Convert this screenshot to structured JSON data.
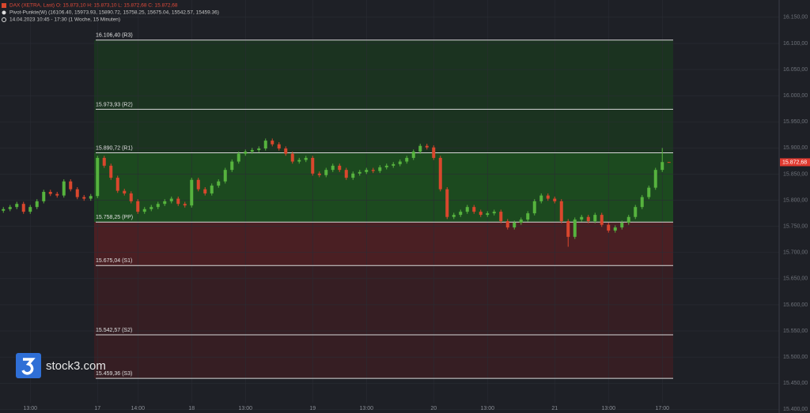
{
  "chart_data": {
    "type": "candlestick",
    "title": "DAX (XETRA, Last)   O: 15.873,10   H: 15.873,10   L: 15.872,68   C: 15.872,68",
    "subtitle": "Pivot-Punkte(W)   (16106.40,   15973.93,   15890.72,   15758.25,   15675.04,   15542.57,   15459.36)",
    "period": "14.04.2023 10:45 - 17:30   (1 Woche, 15 Minuten)",
    "watermark": "stock3.com",
    "up_color": "#56b33e",
    "down_color": "#d9472d",
    "categories": [
      null,
      null,
      null,
      null,
      "13:00",
      null,
      null,
      null,
      null,
      null,
      null,
      null,
      null,
      null,
      "17",
      null,
      null,
      null,
      null,
      null,
      "14:00",
      null,
      null,
      null,
      null,
      null,
      null,
      null,
      "18",
      null,
      null,
      null,
      null,
      null,
      null,
      null,
      "13:00",
      null,
      null,
      null,
      null,
      null,
      null,
      null,
      null,
      null,
      "19",
      null,
      null,
      null,
      null,
      null,
      null,
      null,
      "13:00",
      null,
      null,
      null,
      null,
      null,
      null,
      null,
      null,
      null,
      "20",
      null,
      null,
      null,
      null,
      null,
      null,
      null,
      "13:00",
      null,
      null,
      null,
      null,
      null,
      null,
      null,
      null,
      null,
      "21",
      null,
      null,
      null,
      null,
      null,
      null,
      null,
      "13:00",
      null,
      null,
      null,
      null,
      null,
      null,
      null,
      "17:00",
      null
    ],
    "open": [
      15780,
      15783,
      15787,
      15793,
      15778,
      15787,
      15798,
      15816,
      15812,
      15809,
      15836,
      15821,
      15806,
      15803,
      15808,
      15881,
      15866,
      15843,
      15818,
      15813,
      15798,
      15778,
      15783,
      15787,
      15793,
      15798,
      15803,
      15793,
      15790,
      15839,
      15821,
      15813,
      15828,
      15836,
      15858,
      15874,
      15889,
      15893,
      15896,
      15899,
      15914,
      15907,
      15899,
      15889,
      15874,
      15877,
      15881,
      15851,
      15848,
      15858,
      15866,
      15858,
      15843,
      15851,
      15854,
      15858,
      15856,
      15863,
      15866,
      15869,
      15874,
      15881,
      15893,
      15904,
      15901,
      15881,
      15821,
      15768,
      15772,
      15778,
      15787,
      15778,
      15772,
      15775,
      15778,
      15760,
      15748,
      15757,
      15763,
      15775,
      15798,
      15809,
      15803,
      15798,
      15760,
      15730,
      15763,
      15768,
      15760,
      15772,
      15753,
      15742,
      15748,
      15757,
      15768,
      15787,
      15806,
      15824,
      15858,
      15873.1
    ],
    "high": [
      15787,
      15791,
      15797,
      15797,
      15791,
      15802,
      15820,
      15820,
      15816,
      15840,
      15840,
      15825,
      15810,
      15812,
      15885,
      15885,
      15870,
      15847,
      15822,
      15817,
      15802,
      15787,
      15791,
      15797,
      15802,
      15807,
      15807,
      15797,
      15843,
      15843,
      15825,
      15832,
      15840,
      15862,
      15878,
      15893,
      15897,
      15900,
      15903,
      15918,
      15918,
      15911,
      15903,
      15893,
      15881,
      15885,
      15885,
      15855,
      15862,
      15870,
      15870,
      15862,
      15855,
      15858,
      15862,
      15862,
      15867,
      15870,
      15873,
      15878,
      15885,
      15897,
      15908,
      15908,
      15905,
      15885,
      15825,
      15776,
      15782,
      15791,
      15791,
      15782,
      15779,
      15782,
      15782,
      15764,
      15761,
      15767,
      15779,
      15802,
      15813,
      15813,
      15807,
      15802,
      15764,
      15767,
      15772,
      15772,
      15776,
      15776,
      15757,
      15752,
      15761,
      15772,
      15791,
      15810,
      15828,
      15862,
      15900,
      15873.1
    ],
    "low": [
      15776,
      15779,
      15783,
      15774,
      15774,
      15783,
      15794,
      15808,
      15805,
      15805,
      15817,
      15802,
      15799,
      15799,
      15804,
      15862,
      15839,
      15814,
      15809,
      15794,
      15774,
      15774,
      15779,
      15783,
      15789,
      15794,
      15789,
      15786,
      15786,
      15817,
      15809,
      15809,
      15824,
      15832,
      15854,
      15870,
      15885,
      15889,
      15892,
      15895,
      15903,
      15895,
      15885,
      15870,
      15870,
      15873,
      15847,
      15844,
      15844,
      15854,
      15854,
      15839,
      15839,
      15847,
      15850,
      15852,
      15852,
      15859,
      15862,
      15865,
      15870,
      15877,
      15889,
      15897,
      15877,
      15817,
      15764,
      15764,
      15768,
      15774,
      15774,
      15768,
      15768,
      15771,
      15756,
      15744,
      15744,
      15753,
      15759,
      15771,
      15794,
      15799,
      15794,
      15756,
      15711,
      15726,
      15759,
      15756,
      15756,
      15749,
      15738,
      15738,
      15744,
      15753,
      15764,
      15783,
      15802,
      15820,
      15854,
      15872.68
    ],
    "close": [
      15783,
      15787,
      15793,
      15778,
      15787,
      15798,
      15816,
      15812,
      15809,
      15836,
      15821,
      15806,
      15803,
      15808,
      15881,
      15866,
      15843,
      15818,
      15813,
      15798,
      15778,
      15783,
      15787,
      15793,
      15798,
      15803,
      15793,
      15790,
      15839,
      15821,
      15813,
      15828,
      15836,
      15858,
      15874,
      15889,
      15893,
      15896,
      15899,
      15914,
      15907,
      15899,
      15889,
      15874,
      15877,
      15881,
      15851,
      15848,
      15858,
      15866,
      15858,
      15843,
      15851,
      15854,
      15858,
      15856,
      15863,
      15866,
      15869,
      15874,
      15881,
      15893,
      15904,
      15901,
      15881,
      15821,
      15768,
      15772,
      15778,
      15787,
      15778,
      15772,
      15775,
      15778,
      15760,
      15748,
      15757,
      15763,
      15775,
      15798,
      15809,
      15803,
      15798,
      15760,
      15730,
      15763,
      15768,
      15760,
      15772,
      15753,
      15742,
      15748,
      15757,
      15768,
      15787,
      15806,
      15824,
      15858,
      15873,
      15872.68
    ],
    "pivots": [
      {
        "value": 16106.4,
        "label": "16.106,40 (R3)"
      },
      {
        "value": 15973.93,
        "label": "15.973,93 (R2)"
      },
      {
        "value": 15890.72,
        "label": "15.890,72 (R1)"
      },
      {
        "value": 15758.25,
        "label": "15.758,25 (PP)"
      },
      {
        "value": 15675.04,
        "label": "15.675,04 (S1)"
      },
      {
        "value": 15542.57,
        "label": "15.542,57 (S2)"
      },
      {
        "value": 15459.36,
        "label": "15.459,36 (S3)"
      }
    ],
    "last_price": {
      "value": 15872.68,
      "label": "15.872,68"
    },
    "ylim": [
      15393,
      16183
    ],
    "yticks": [
      {
        "value": 16150,
        "label": "16.150,00"
      },
      {
        "value": 16100,
        "label": "16.100,00"
      },
      {
        "value": 16050,
        "label": "16.050,00"
      },
      {
        "value": 16000,
        "label": "16.000,00"
      },
      {
        "value": 15950,
        "label": "15.950,00"
      },
      {
        "value": 15900,
        "label": "15.900,00"
      },
      {
        "value": 15850,
        "label": "15.850,00"
      },
      {
        "value": 15800,
        "label": "15.800,00"
      },
      {
        "value": 15750,
        "label": "15.750,00"
      },
      {
        "value": 15700,
        "label": "15.700,00"
      },
      {
        "value": 15650,
        "label": "15.650,00"
      },
      {
        "value": 15600,
        "label": "15.600,00"
      },
      {
        "value": 15550,
        "label": "15.550,00"
      },
      {
        "value": 15500,
        "label": "15.500,00"
      },
      {
        "value": 15450,
        "label": "15.450,00"
      },
      {
        "value": 15400,
        "label": "15.400,00"
      }
    ],
    "grid": true
  }
}
